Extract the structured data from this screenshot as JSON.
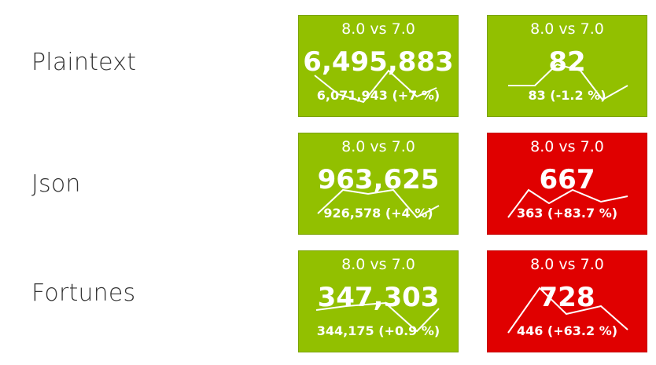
{
  "rows": [
    {
      "label": "Plaintext",
      "tiles": [
        {
          "comparison": "8.0 vs 7.0",
          "value": "6,495,883",
          "sub": "6,071,943 (+7 %)",
          "status": "good"
        },
        {
          "comparison": "8.0 vs 7.0",
          "value": "82",
          "sub": "83 (-1.2 %)",
          "status": "good"
        }
      ]
    },
    {
      "label": "Json",
      "tiles": [
        {
          "comparison": "8.0 vs 7.0",
          "value": "963,625",
          "sub": "926,578 (+4 %)",
          "status": "good"
        },
        {
          "comparison": "8.0 vs 7.0",
          "value": "667",
          "sub": "363 (+83.7 %)",
          "status": "bad"
        }
      ]
    },
    {
      "label": "Fortunes",
      "tiles": [
        {
          "comparison": "8.0 vs 7.0",
          "value": "347,303",
          "sub": "344,175 (+0.9 %)",
          "status": "good"
        },
        {
          "comparison": "8.0 vs 7.0",
          "value": "728",
          "sub": "446 (+63.2 %)",
          "status": "bad"
        }
      ]
    }
  ],
  "colors": {
    "good": "#92c000",
    "bad": "#e00000",
    "text": "#333333"
  }
}
